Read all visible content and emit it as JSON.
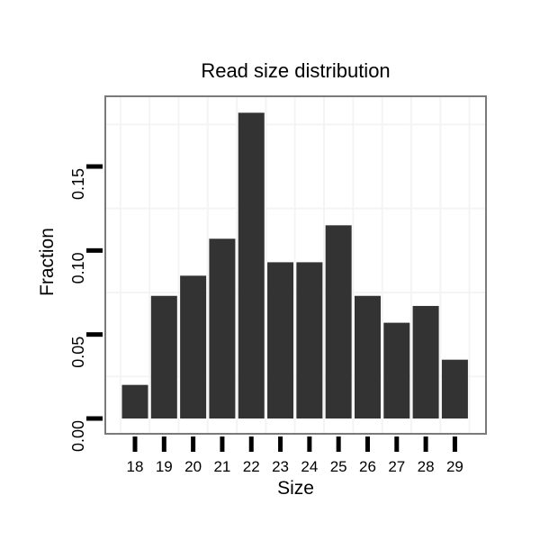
{
  "chart_data": {
    "type": "bar",
    "title": "Read size distribution",
    "xlabel": "Size",
    "ylabel": "Fraction",
    "categories": [
      "18",
      "19",
      "20",
      "21",
      "22",
      "23",
      "24",
      "25",
      "26",
      "27",
      "28",
      "29"
    ],
    "values": [
      0.02,
      0.073,
      0.085,
      0.107,
      0.182,
      0.093,
      0.093,
      0.115,
      0.073,
      0.057,
      0.067,
      0.035
    ],
    "ytick_labels": [
      "0.00",
      "0.05",
      "0.10",
      "0.15"
    ],
    "ytick_values": [
      0.0,
      0.05,
      0.1,
      0.15
    ],
    "y_minor_gridlines": [
      0.025,
      0.075,
      0.125,
      0.175
    ],
    "ylim": [
      -0.0095,
      0.1915
    ],
    "grid": "minor-only",
    "legend": "none"
  },
  "colors": {
    "bar": "#333333",
    "panel_border": "#7a7a7a",
    "gridline": "#f4f4f4",
    "tick": "#000000",
    "text": "#000000",
    "background": "#ffffff"
  }
}
